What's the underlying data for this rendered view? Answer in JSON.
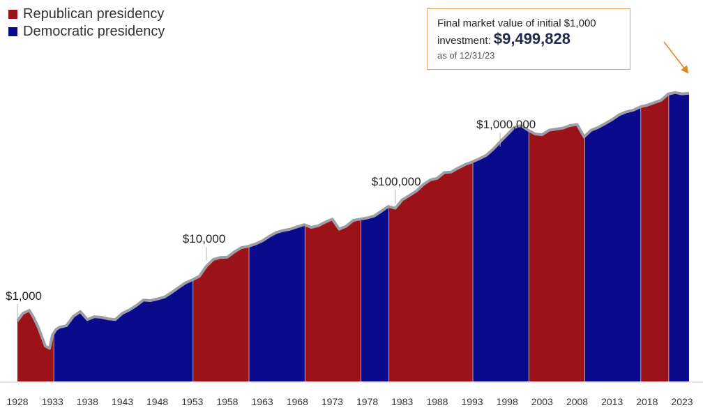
{
  "colors": {
    "republican": "#9b1218",
    "democratic": "#0a0a8c",
    "line": "#9e9ea6",
    "arrow": "#e08a2a"
  },
  "legend": [
    {
      "label": "Republican presidency",
      "party": "republican"
    },
    {
      "label": "Democratic presidency",
      "party": "democratic"
    }
  ],
  "callout": {
    "line1": "Final market value of initial $1,000",
    "line2_prefix": "investment: ",
    "value": "$9,499,828",
    "date": "as of 12/31/23"
  },
  "chart_data": {
    "type": "area",
    "y_scale": "log",
    "ylim": [
      100,
      20000000
    ],
    "xlim": [
      1928,
      2024
    ],
    "x_ticks": [
      1928,
      1933,
      1938,
      1943,
      1948,
      1953,
      1958,
      1963,
      1968,
      1973,
      1978,
      1983,
      1988,
      1993,
      1998,
      2003,
      2008,
      2013,
      2018,
      2023
    ],
    "annotations": [
      {
        "label": "$1,000",
        "year": 1928.0,
        "value": 1000
      },
      {
        "label": "$10,000",
        "year": 1955.0,
        "value": 10000
      },
      {
        "label": "$100,000",
        "year": 1982.0,
        "value": 100000
      },
      {
        "label": "$1,000,000",
        "year": 1997.0,
        "value": 1000000
      }
    ],
    "presidencies": [
      {
        "start": 1928.0,
        "end": 1933.2,
        "party": "republican"
      },
      {
        "start": 1933.2,
        "end": 1953.1,
        "party": "democratic"
      },
      {
        "start": 1953.1,
        "end": 1961.1,
        "party": "republican"
      },
      {
        "start": 1961.1,
        "end": 1969.1,
        "party": "democratic"
      },
      {
        "start": 1969.1,
        "end": 1977.1,
        "party": "republican"
      },
      {
        "start": 1977.1,
        "end": 1981.1,
        "party": "democratic"
      },
      {
        "start": 1981.1,
        "end": 1993.1,
        "party": "republican"
      },
      {
        "start": 1993.1,
        "end": 2001.1,
        "party": "democratic"
      },
      {
        "start": 2001.1,
        "end": 2009.1,
        "party": "republican"
      },
      {
        "start": 2009.1,
        "end": 2017.1,
        "party": "democratic"
      },
      {
        "start": 2017.1,
        "end": 2021.1,
        "party": "republican"
      },
      {
        "start": 2021.1,
        "end": 2024.0,
        "party": "democratic"
      }
    ],
    "series": [
      {
        "values": [
          [
            1928.0,
            1000
          ],
          [
            1928.8,
            1350
          ],
          [
            1929.7,
            1520
          ],
          [
            1930.3,
            1150
          ],
          [
            1931.0,
            760
          ],
          [
            1932.0,
            360
          ],
          [
            1932.6,
            330
          ],
          [
            1933.0,
            560
          ],
          [
            1933.5,
            700
          ],
          [
            1934.0,
            770
          ],
          [
            1935.0,
            820
          ],
          [
            1936.0,
            1200
          ],
          [
            1937.0,
            1450
          ],
          [
            1938.0,
            1050
          ],
          [
            1939.0,
            1180
          ],
          [
            1940.0,
            1150
          ],
          [
            1941.0,
            1080
          ],
          [
            1942.0,
            1050
          ],
          [
            1943.0,
            1350
          ],
          [
            1944.0,
            1550
          ],
          [
            1945.0,
            1850
          ],
          [
            1946.0,
            2300
          ],
          [
            1947.0,
            2250
          ],
          [
            1948.0,
            2400
          ],
          [
            1949.0,
            2600
          ],
          [
            1950.0,
            3100
          ],
          [
            1951.0,
            3800
          ],
          [
            1952.0,
            4600
          ],
          [
            1953.0,
            5200
          ],
          [
            1954.0,
            6000
          ],
          [
            1955.0,
            9000
          ],
          [
            1956.0,
            11800
          ],
          [
            1957.0,
            12800
          ],
          [
            1958.0,
            13000
          ],
          [
            1959.0,
            16000
          ],
          [
            1960.0,
            19000
          ],
          [
            1961.0,
            20000
          ],
          [
            1962.0,
            22000
          ],
          [
            1963.0,
            25000
          ],
          [
            1964.0,
            30000
          ],
          [
            1965.0,
            35000
          ],
          [
            1966.0,
            38000
          ],
          [
            1967.0,
            40000
          ],
          [
            1968.0,
            44000
          ],
          [
            1969.0,
            48000
          ],
          [
            1970.0,
            43000
          ],
          [
            1971.0,
            46000
          ],
          [
            1972.0,
            53000
          ],
          [
            1973.0,
            60000
          ],
          [
            1974.0,
            40000
          ],
          [
            1975.0,
            45000
          ],
          [
            1976.0,
            57000
          ],
          [
            1977.0,
            60000
          ],
          [
            1978.0,
            63000
          ],
          [
            1979.0,
            68000
          ],
          [
            1980.0,
            82000
          ],
          [
            1981.0,
            100000
          ],
          [
            1982.0,
            93000
          ],
          [
            1983.0,
            130000
          ],
          [
            1984.0,
            155000
          ],
          [
            1985.0,
            185000
          ],
          [
            1986.0,
            240000
          ],
          [
            1987.0,
            290000
          ],
          [
            1988.0,
            310000
          ],
          [
            1989.0,
            390000
          ],
          [
            1990.0,
            400000
          ],
          [
            1991.0,
            470000
          ],
          [
            1992.0,
            540000
          ],
          [
            1993.0,
            600000
          ],
          [
            1994.0,
            680000
          ],
          [
            1995.0,
            780000
          ],
          [
            1996.0,
            1000000
          ],
          [
            1997.0,
            1350000
          ],
          [
            1998.0,
            1800000
          ],
          [
            1999.0,
            2400000
          ],
          [
            2000.0,
            2600000
          ],
          [
            2001.0,
            2150000
          ],
          [
            2002.0,
            1850000
          ],
          [
            2003.0,
            1800000
          ],
          [
            2004.0,
            2150000
          ],
          [
            2005.0,
            2250000
          ],
          [
            2006.0,
            2350000
          ],
          [
            2007.0,
            2600000
          ],
          [
            2008.0,
            2700000
          ],
          [
            2009.0,
            1650000
          ],
          [
            2010.0,
            2150000
          ],
          [
            2011.0,
            2400000
          ],
          [
            2012.0,
            2800000
          ],
          [
            2013.0,
            3300000
          ],
          [
            2014.0,
            4000000
          ],
          [
            2015.0,
            4500000
          ],
          [
            2016.0,
            4800000
          ],
          [
            2017.0,
            5500000
          ],
          [
            2018.0,
            5900000
          ],
          [
            2019.0,
            6500000
          ],
          [
            2020.0,
            7200000
          ],
          [
            2021.0,
            9200000
          ],
          [
            2022.0,
            9800000
          ],
          [
            2023.0,
            9300000
          ],
          [
            2024.0,
            9499828
          ]
        ]
      }
    ]
  }
}
